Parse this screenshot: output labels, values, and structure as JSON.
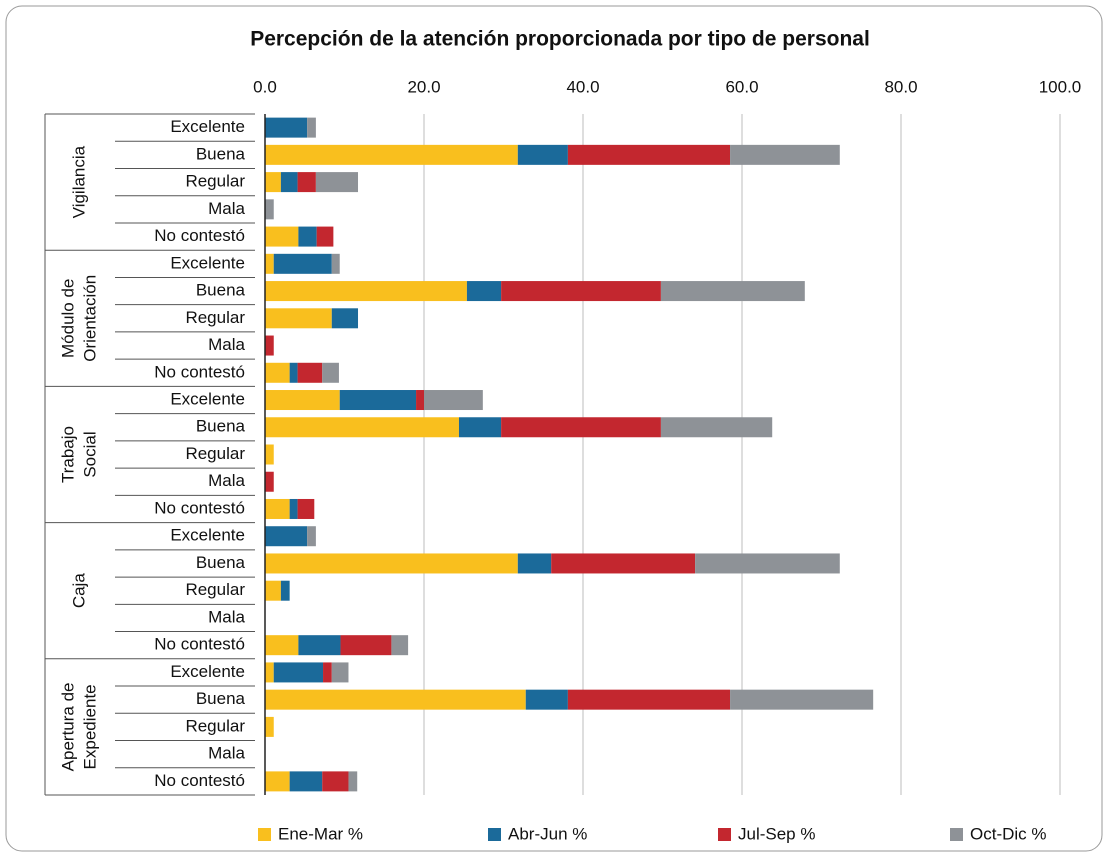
{
  "chart_data": {
    "type": "stacked-barh",
    "title": "Percepción de la atención proporcionada por tipo de personal",
    "groups": [
      {
        "name": [
          "Vigilancia"
        ],
        "categories": [
          "Excelente",
          "Buena",
          "Regular",
          "Mala",
          "No contestó"
        ]
      },
      {
        "name": [
          "Módulo de",
          "Orientación"
        ],
        "categories": [
          "Excelente",
          "Buena",
          "Regular",
          "Mala",
          "No contestó"
        ]
      },
      {
        "name": [
          "Trabajo",
          "Social"
        ],
        "categories": [
          "Excelente",
          "Buena",
          "Regular",
          "Mala",
          "No contestó"
        ]
      },
      {
        "name": [
          "Caja"
        ],
        "categories": [
          "Excelente",
          "Buena",
          "Regular",
          "Mala",
          "No contestó"
        ]
      },
      {
        "name": [
          "Apertura de",
          "Expediente"
        ],
        "categories": [
          "Excelente",
          "Buena",
          "Regular",
          "Mala",
          "No contestó"
        ]
      }
    ],
    "series": [
      {
        "name": "Ene-Mar %",
        "color": "#f9bf1e",
        "values": [
          0,
          31.8,
          2.0,
          0,
          4.2,
          1.1,
          25.4,
          8.4,
          0,
          3.1,
          9.4,
          24.4,
          1.1,
          0,
          3.1,
          0,
          31.8,
          2.0,
          0,
          4.2,
          1.1,
          32.8,
          1.1,
          0,
          3.1
        ]
      },
      {
        "name": "Abr-Jun %",
        "color": "#1b6a9a",
        "values": [
          5.3,
          6.3,
          2.1,
          0,
          2.3,
          7.3,
          4.3,
          3.3,
          0,
          1.0,
          9.6,
          5.3,
          0,
          0,
          1.0,
          5.3,
          4.2,
          1.1,
          0,
          5.3,
          6.2,
          5.3,
          0,
          0,
          4.1
        ]
      },
      {
        "name": "Jul-Sep %",
        "color": "#c3272f",
        "values": [
          0,
          20.4,
          2.3,
          0,
          2.1,
          0,
          20.1,
          0,
          1.1,
          3.1,
          1.0,
          20.1,
          0,
          1.1,
          2.1,
          0,
          18.1,
          0,
          0,
          6.4,
          1.1,
          20.4,
          0,
          0,
          3.3
        ]
      },
      {
        "name": "Oct-Dic %",
        "color": "#8e9297",
        "values": [
          1.1,
          13.8,
          5.3,
          1.1,
          0,
          1.0,
          18.1,
          0,
          0,
          2.1,
          7.4,
          14.0,
          0,
          0,
          0,
          1.1,
          18.2,
          0,
          0,
          2.1,
          2.1,
          18.0,
          0,
          0,
          1.1
        ]
      }
    ],
    "xlim": [
      0,
      100
    ],
    "xticks": [
      {
        "value": 0,
        "label": "0.0"
      },
      {
        "value": 20,
        "label": "20.0"
      },
      {
        "value": 40,
        "label": "40.0"
      },
      {
        "value": 60,
        "label": "60.0"
      },
      {
        "value": 80,
        "label": "80.0"
      },
      {
        "value": 100,
        "label": "100.0"
      }
    ],
    "grid": true,
    "legend": "bottom"
  }
}
